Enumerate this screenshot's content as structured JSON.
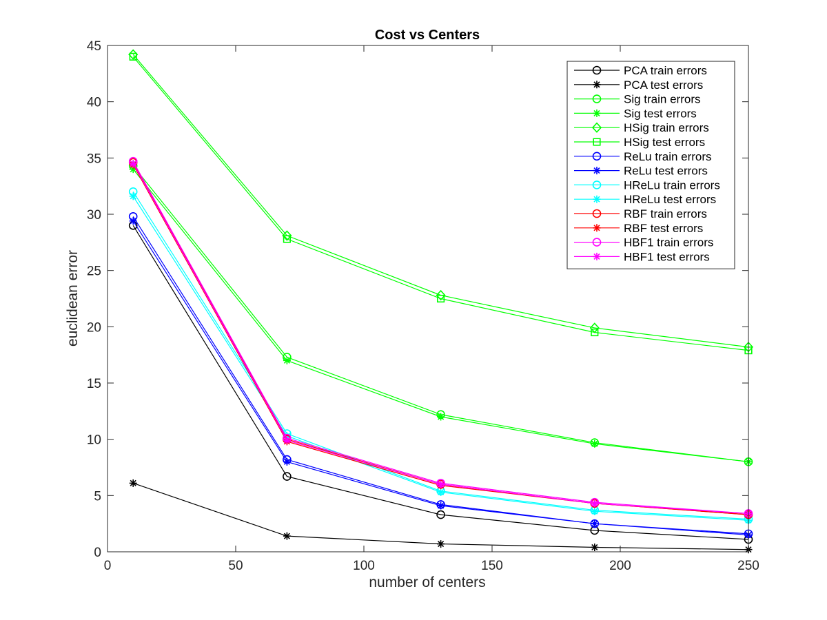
{
  "chart_data": {
    "type": "line",
    "title": "Cost vs Centers",
    "xlabel": "number of centers",
    "ylabel": "euclidean error",
    "xlim": [
      0,
      250
    ],
    "ylim": [
      0,
      45
    ],
    "xticks": [
      "0",
      "50",
      "100",
      "150",
      "200",
      "250"
    ],
    "yticks": [
      "0",
      "5",
      "10",
      "15",
      "20",
      "25",
      "30",
      "35",
      "40",
      "45"
    ],
    "grid": false,
    "legend_position": "top-right",
    "x": [
      10,
      70,
      130,
      190,
      250
    ],
    "series": [
      {
        "name": "PCA train errors",
        "color": "#000000",
        "marker": "circle",
        "values": [
          29.0,
          6.7,
          3.3,
          1.9,
          1.1
        ]
      },
      {
        "name": "PCA test errors",
        "color": "#000000",
        "marker": "asterisk",
        "values": [
          6.1,
          1.4,
          0.7,
          0.4,
          0.2
        ]
      },
      {
        "name": "Sig train errors",
        "color": "#00ff00",
        "marker": "circle",
        "values": [
          34.3,
          17.3,
          12.2,
          9.7,
          8.0
        ]
      },
      {
        "name": "Sig test errors",
        "color": "#00ff00",
        "marker": "asterisk",
        "values": [
          34.0,
          17.0,
          12.0,
          9.6,
          8.0
        ]
      },
      {
        "name": "HSig train errors",
        "color": "#00ff00",
        "marker": "diamond",
        "values": [
          44.2,
          28.1,
          22.8,
          19.9,
          18.2
        ]
      },
      {
        "name": "HSig test errors",
        "color": "#00ff00",
        "marker": "square",
        "values": [
          44.0,
          27.8,
          22.5,
          19.5,
          17.9
        ]
      },
      {
        "name": "ReLu train errors",
        "color": "#0000ff",
        "marker": "circle",
        "values": [
          29.8,
          8.2,
          4.2,
          2.5,
          1.6
        ]
      },
      {
        "name": "ReLu test errors",
        "color": "#0000ff",
        "marker": "asterisk",
        "values": [
          29.4,
          8.0,
          4.1,
          2.5,
          1.5
        ]
      },
      {
        "name": "HReLu train errors",
        "color": "#00ffff",
        "marker": "circle",
        "values": [
          32.0,
          10.5,
          5.4,
          3.7,
          2.9
        ]
      },
      {
        "name": "HReLu test errors",
        "color": "#00ffff",
        "marker": "asterisk",
        "values": [
          31.6,
          10.3,
          5.3,
          3.6,
          2.8
        ]
      },
      {
        "name": "RBF train errors",
        "color": "#ff0000",
        "marker": "circle",
        "values": [
          34.6,
          10.0,
          6.0,
          4.3,
          3.3
        ]
      },
      {
        "name": "RBF test errors",
        "color": "#ff0000",
        "marker": "asterisk",
        "values": [
          34.4,
          9.8,
          5.9,
          4.3,
          3.3
        ]
      },
      {
        "name": "HBF1 train errors",
        "color": "#ff00ff",
        "marker": "circle",
        "values": [
          34.7,
          10.1,
          6.1,
          4.4,
          3.4
        ]
      },
      {
        "name": "HBF1 test errors",
        "color": "#ff00ff",
        "marker": "asterisk",
        "values": [
          34.5,
          9.9,
          6.0,
          4.3,
          3.4
        ]
      }
    ]
  }
}
